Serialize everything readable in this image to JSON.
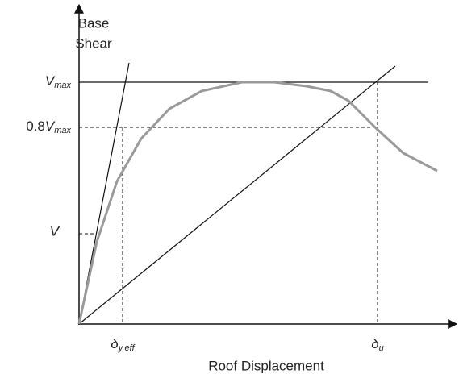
{
  "y_axis": {
    "label_lines": [
      "Base",
      "Shear"
    ]
  },
  "x_axis": {
    "label": "Roof Displacement"
  },
  "y_labels": [
    {
      "main": "V",
      "sub": "max"
    },
    {
      "prefix": "0.8",
      "main": "V",
      "sub": "max"
    },
    {
      "main": "V"
    }
  ],
  "x_labels": [
    {
      "main": "δ",
      "sub": "y,eff"
    },
    {
      "main": "δ",
      "sub": "u"
    }
  ]
}
